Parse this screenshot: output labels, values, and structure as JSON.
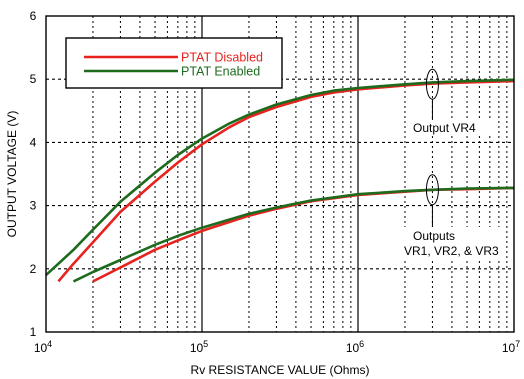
{
  "chart_data": {
    "type": "line",
    "xlabel": "Rᴠ RESISTANCE VALUE (Ohms)",
    "ylabel": "OUTPUT VOLTAGE (V)",
    "x_scale": "log",
    "xlim": [
      10000,
      10000000
    ],
    "ylim": [
      1,
      6
    ],
    "x_ticks": [
      {
        "value": 10000,
        "base": "10",
        "exp": "4"
      },
      {
        "value": 100000,
        "base": "10",
        "exp": "5"
      },
      {
        "value": 1000000,
        "base": "10",
        "exp": "6"
      },
      {
        "value": 10000000,
        "base": "10",
        "exp": "7"
      }
    ],
    "y_ticks": [
      "1",
      "2",
      "3",
      "4",
      "5",
      "6"
    ],
    "grid": true,
    "legend": {
      "placement": "top-left",
      "entries": [
        {
          "label": "PTAT Disabled",
          "color": "#e8231f"
        },
        {
          "label": "PTAT Enabled",
          "color": "#1e6b1e"
        }
      ]
    },
    "series": [
      {
        "name": "PTAT Disabled",
        "output": "Output VR4",
        "color": "#e8231f",
        "x": [
          12000,
          15000,
          20000,
          30000,
          50000,
          70000,
          100000,
          150000,
          200000,
          300000,
          500000,
          700000,
          1000000,
          2000000,
          3000000,
          5000000,
          10000000
        ],
        "y": [
          1.8,
          2.08,
          2.42,
          2.9,
          3.38,
          3.68,
          3.97,
          4.24,
          4.4,
          4.56,
          4.72,
          4.79,
          4.84,
          4.9,
          4.93,
          4.95,
          4.97
        ]
      },
      {
        "name": "PTAT Enabled",
        "output": "Output VR4",
        "color": "#1e6b1e",
        "x": [
          10000,
          12000,
          15000,
          20000,
          30000,
          50000,
          70000,
          100000,
          150000,
          200000,
          300000,
          500000,
          700000,
          1000000,
          2000000,
          3000000,
          5000000,
          10000000
        ],
        "y": [
          1.9,
          2.08,
          2.3,
          2.62,
          3.06,
          3.52,
          3.8,
          4.06,
          4.3,
          4.44,
          4.6,
          4.75,
          4.82,
          4.86,
          4.92,
          4.95,
          4.97,
          4.99
        ]
      },
      {
        "name": "PTAT Disabled",
        "output": "Outputs VR1, VR2, & VR3",
        "color": "#e8231f",
        "x": [
          20000,
          30000,
          50000,
          70000,
          100000,
          200000,
          300000,
          500000,
          1000000,
          2000000,
          3000000,
          5000000,
          10000000
        ],
        "y": [
          1.8,
          2.02,
          2.3,
          2.45,
          2.6,
          2.84,
          2.95,
          3.07,
          3.17,
          3.22,
          3.25,
          3.26,
          3.28
        ]
      },
      {
        "name": "PTAT Enabled",
        "output": "Outputs VR1, VR2, & VR3",
        "color": "#1e6b1e",
        "x": [
          15000,
          20000,
          30000,
          50000,
          70000,
          100000,
          200000,
          300000,
          500000,
          1000000,
          2000000,
          3000000,
          5000000,
          10000000
        ],
        "y": [
          1.8,
          1.95,
          2.14,
          2.38,
          2.52,
          2.65,
          2.87,
          2.97,
          3.08,
          3.18,
          3.23,
          3.25,
          3.27,
          3.28
        ]
      }
    ],
    "annotations": [
      {
        "text": "Output VR4",
        "at": {
          "x": 3000000,
          "y": 4.92
        }
      },
      {
        "lines": [
          "Outputs",
          "VR1, VR2, & VR3"
        ],
        "at": {
          "x": 3000000,
          "y": 3.25
        }
      }
    ]
  }
}
